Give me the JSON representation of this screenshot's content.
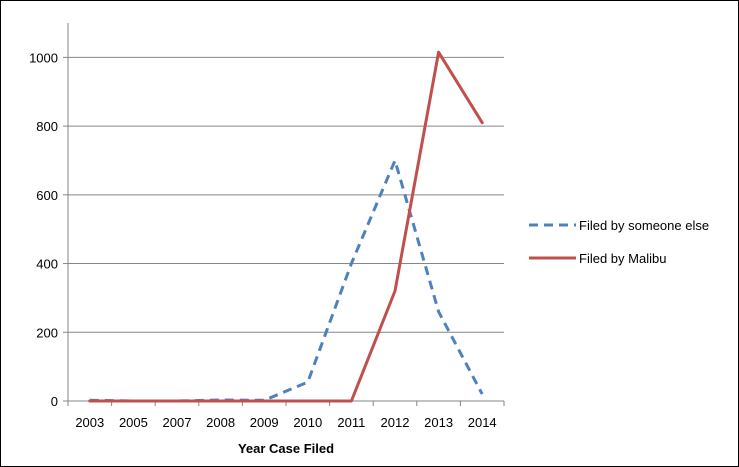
{
  "chart_data": {
    "type": "line",
    "categories": [
      "2003",
      "2005",
      "2007",
      "2008",
      "2009",
      "2010",
      "2011",
      "2012",
      "2013",
      "2014"
    ],
    "series": [
      {
        "name": "Filed by someone else",
        "values": [
          2,
          0,
          0,
          3,
          2,
          55,
          400,
          700,
          260,
          20
        ],
        "color": "#4F81BD",
        "dash": true
      },
      {
        "name": "Filed by Malibu",
        "values": [
          0,
          0,
          0,
          0,
          0,
          0,
          0,
          320,
          1015,
          810
        ],
        "color": "#C0504D",
        "dash": false
      }
    ],
    "xlabel": "Year Case Filed",
    "ylabel": "",
    "title": "",
    "ylim": [
      0,
      1100
    ],
    "yticks": [
      0,
      200,
      400,
      600,
      800,
      1000
    ],
    "grid": true,
    "legend": "right"
  }
}
